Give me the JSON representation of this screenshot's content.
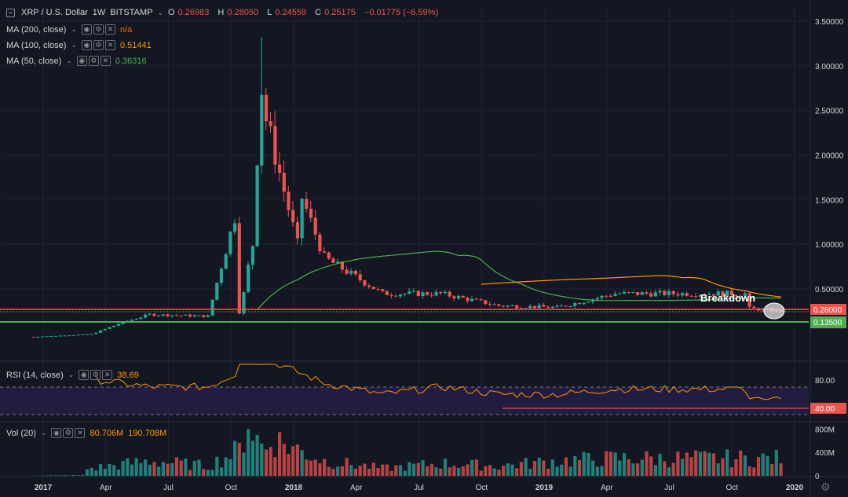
{
  "header": {
    "symbol": "XRP / U.S. Dollar",
    "interval": "1W",
    "exchange": "BITSTAMP",
    "open_label": "O",
    "open": "0.26983",
    "high_label": "H",
    "high": "0.28050",
    "low_label": "L",
    "low": "0.24559",
    "close_label": "C",
    "close": "0.25175",
    "change": "−0.01775 (−6.59%)"
  },
  "indicators": {
    "ma200": {
      "label": "MA (200, close)",
      "value": "n/a",
      "color": "#ef6c00"
    },
    "ma100": {
      "label": "MA (100, close)",
      "value": "0.51441",
      "color": "#ff9800"
    },
    "ma50": {
      "label": "MA (50, close)",
      "value": "0.36316",
      "color": "#4caf50"
    },
    "rsi": {
      "label": "RSI (14, close)",
      "value": "38.69",
      "color": "#ff9800"
    },
    "vol": {
      "label": "Vol (20)",
      "value1": "80.706M",
      "value2": "190.708M",
      "color": "#ff9800"
    }
  },
  "annotation": {
    "text": "Breakdown"
  },
  "price_axis": {
    "ticks": [
      "3.50000",
      "3.00000",
      "2.50000",
      "2.00000",
      "1.50000",
      "1.00000",
      "0.50000"
    ],
    "tick_values": [
      3.5,
      3.0,
      2.5,
      2.0,
      1.5,
      1.0,
      0.5
    ],
    "badges": [
      {
        "text": "0.28000",
        "value": 0.28,
        "color": "#ef5350"
      },
      {
        "text": "0.25175",
        "value": 0.25175,
        "color": "#ef5350"
      },
      {
        "text": "0.13500",
        "value": 0.135,
        "color": "#4caf50"
      }
    ]
  },
  "rsi_axis": {
    "ticks": [
      "80.00"
    ],
    "tick_values": [
      80
    ],
    "badge": {
      "text": "40.00",
      "value": 40
    }
  },
  "vol_axis": {
    "ticks": [
      "800M",
      "400M",
      "0"
    ],
    "tick_values": [
      800,
      400,
      0
    ]
  },
  "time_axis": {
    "labels": [
      "2017",
      "Apr",
      "Jul",
      "Oct",
      "2018",
      "Apr",
      "Jul",
      "Oct",
      "2019",
      "Apr",
      "Jul",
      "Oct",
      "2020"
    ]
  },
  "levels": {
    "resistance": 0.28,
    "support": 0.135
  },
  "colors": {
    "up": "#26a69a",
    "down": "#ef5350",
    "bg": "#131722",
    "grid": "#1f2330",
    "rsi_band": "#2a1f4d"
  },
  "chart_data": {
    "type": "candlestick",
    "series": [
      {
        "name": "price_weekly_close",
        "x_labels": [
          "2017",
          "Apr",
          "Jul",
          "Oct",
          "2018",
          "Apr",
          "Jul",
          "Oct",
          "2019",
          "Apr",
          "Jul"
        ],
        "values": [
          0.006,
          0.03,
          0.22,
          0.2,
          2.6,
          0.85,
          0.45,
          0.45,
          0.32,
          0.3,
          0.45
        ]
      },
      {
        "name": "MA (50, close)",
        "values": [
          null,
          null,
          null,
          0.2,
          0.4,
          0.65,
          0.62,
          0.46,
          0.35,
          0.32,
          0.33
        ]
      },
      {
        "name": "MA (100, close)",
        "values": [
          null,
          null,
          null,
          null,
          null,
          null,
          null,
          0.5,
          0.52,
          0.5,
          0.51
        ]
      },
      {
        "name": "RSI (14, close)",
        "values": [
          60,
          65,
          55,
          55,
          92,
          60,
          45,
          55,
          45,
          45,
          52
        ]
      },
      {
        "name": "Vol (20)",
        "values": [
          50,
          150,
          300,
          200,
          800,
          300,
          150,
          250,
          200,
          300,
          350
        ]
      }
    ],
    "ylim_price": [
      0,
      3.6
    ],
    "ylim_rsi": [
      0,
      100
    ],
    "ylim_vol": [
      0,
      900
    ]
  }
}
